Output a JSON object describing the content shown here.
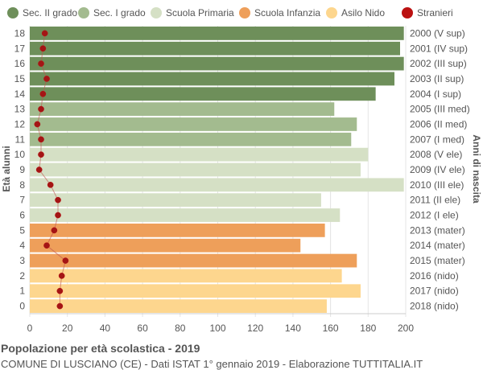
{
  "chart_data": {
    "type": "bar",
    "orientation": "horizontal",
    "title": "Popolazione per età scolastica - 2019",
    "subtitle": "COMUNE DI LUSCIANO (CE) - Dati ISTAT 1° gennaio 2019 - Elaborazione TUTTITALIA.IT",
    "ylabel_left": "Età alunni",
    "ylabel_right": "Anni di nascita",
    "xlim": [
      0,
      200
    ],
    "x_ticks": [
      "0",
      "20",
      "40",
      "60",
      "80",
      "100",
      "120",
      "140",
      "160",
      "180",
      "200"
    ],
    "grid": true,
    "legend_position": "top",
    "legend": [
      {
        "name": "Sec. II grado",
        "color": "#6e8f5a",
        "shape": "circle"
      },
      {
        "name": "Sec. I grado",
        "color": "#a3bb8f",
        "shape": "circle"
      },
      {
        "name": "Scuola Primaria",
        "color": "#d5e0c5",
        "shape": "circle"
      },
      {
        "name": "Scuola Infanzia",
        "color": "#ee9f5a",
        "shape": "circle"
      },
      {
        "name": "Asilo Nido",
        "color": "#fdd68e",
        "shape": "circle"
      },
      {
        "name": "Stranieri",
        "color": "#bb1111",
        "shape": "circle"
      }
    ],
    "rows": [
      {
        "age": "18",
        "birth": "2000 (V sup)",
        "value": 199,
        "foreign": 8,
        "group": 0
      },
      {
        "age": "17",
        "birth": "2001 (IV sup)",
        "value": 197,
        "foreign": 7,
        "group": 0
      },
      {
        "age": "16",
        "birth": "2002 (III sup)",
        "value": 199,
        "foreign": 6,
        "group": 0
      },
      {
        "age": "15",
        "birth": "2003 (II sup)",
        "value": 194,
        "foreign": 9,
        "group": 0
      },
      {
        "age": "14",
        "birth": "2004 (I sup)",
        "value": 184,
        "foreign": 7,
        "group": 0
      },
      {
        "age": "13",
        "birth": "2005 (III med)",
        "value": 162,
        "foreign": 6,
        "group": 1
      },
      {
        "age": "12",
        "birth": "2006 (II med)",
        "value": 174,
        "foreign": 4,
        "group": 1
      },
      {
        "age": "11",
        "birth": "2007 (I med)",
        "value": 171,
        "foreign": 6,
        "group": 1
      },
      {
        "age": "10",
        "birth": "2008 (V ele)",
        "value": 180,
        "foreign": 6,
        "group": 2
      },
      {
        "age": "9",
        "birth": "2009 (IV ele)",
        "value": 176,
        "foreign": 5,
        "group": 2
      },
      {
        "age": "8",
        "birth": "2010 (III ele)",
        "value": 199,
        "foreign": 11,
        "group": 2
      },
      {
        "age": "7",
        "birth": "2011 (II ele)",
        "value": 155,
        "foreign": 15,
        "group": 2
      },
      {
        "age": "6",
        "birth": "2012 (I ele)",
        "value": 165,
        "foreign": 15,
        "group": 2
      },
      {
        "age": "5",
        "birth": "2013 (mater)",
        "value": 157,
        "foreign": 13,
        "group": 3
      },
      {
        "age": "4",
        "birth": "2014 (mater)",
        "value": 144,
        "foreign": 9,
        "group": 3
      },
      {
        "age": "3",
        "birth": "2015 (mater)",
        "value": 174,
        "foreign": 19,
        "group": 3
      },
      {
        "age": "2",
        "birth": "2016 (nido)",
        "value": 166,
        "foreign": 17,
        "group": 4
      },
      {
        "age": "1",
        "birth": "2017 (nido)",
        "value": 176,
        "foreign": 16,
        "group": 4
      },
      {
        "age": "0",
        "birth": "2018 (nido)",
        "value": 158,
        "foreign": 16,
        "group": 4
      }
    ]
  }
}
